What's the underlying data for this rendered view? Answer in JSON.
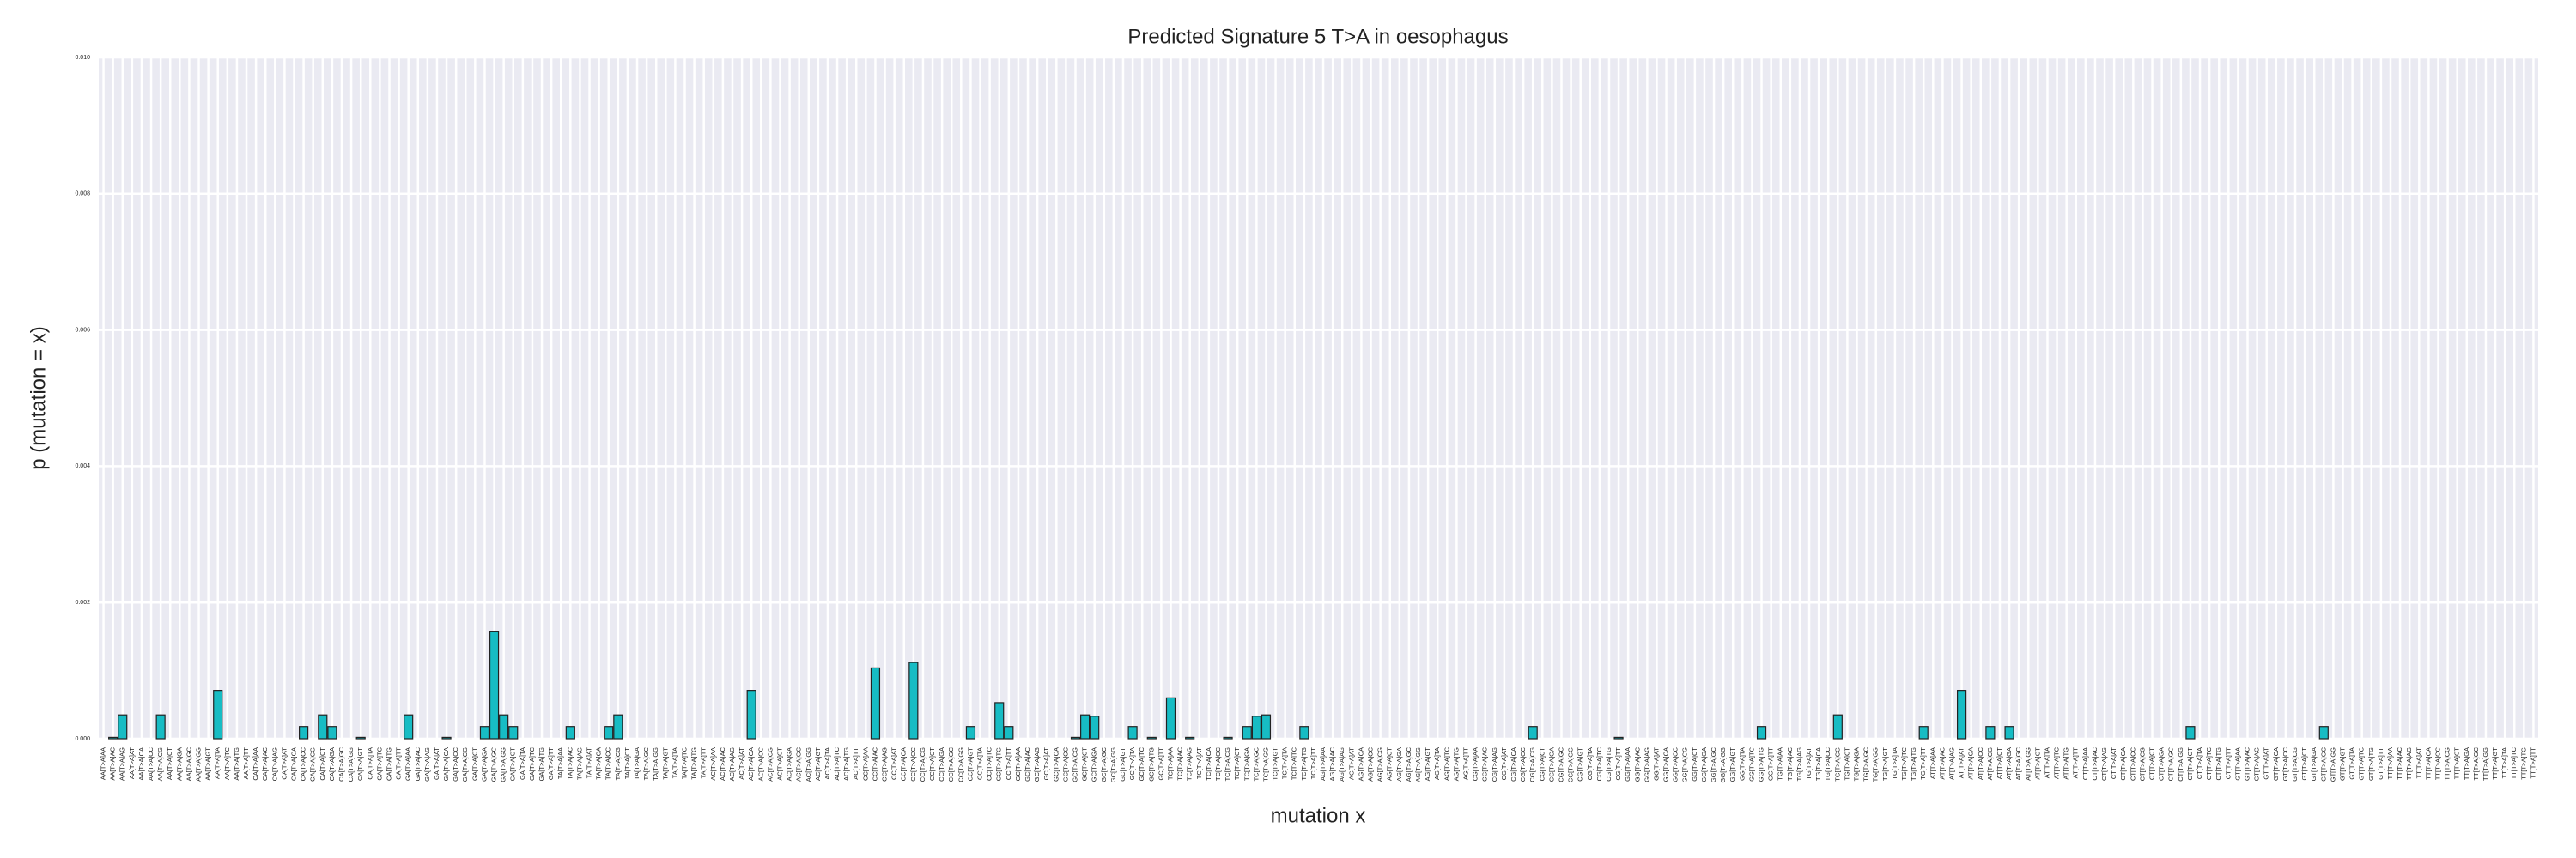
{
  "chart_data": {
    "type": "bar",
    "title": "Predicted Signature 5 T>A in oesophagus",
    "xlabel": "mutation x",
    "ylabel": "p (mutation = x)",
    "color": "#17bcc4",
    "edgecolor": "#222222",
    "grid": true,
    "ylim": [
      0,
      0.01
    ],
    "yticks": [
      {
        "value": 0,
        "label": "0.000"
      },
      0.002,
      0.004,
      0.006,
      0.008,
      {
        "value": 0.01,
        "label": "0.010"
      }
    ],
    "categories": [
      "AA[T>A]AA",
      "AA[T>A]AC",
      "AA[T>A]AG",
      "AA[T>A]AT",
      "AA[T>A]CA",
      "AA[T>A]CC",
      "AA[T>A]CG",
      "AA[T>A]CT",
      "AA[T>A]GA",
      "AA[T>A]GC",
      "AA[T>A]GG",
      "AA[T>A]GT",
      "AA[T>A]TA",
      "AA[T>A]TC",
      "AA[T>A]TG",
      "AA[T>A]TT",
      "CA[T>A]AA",
      "CA[T>A]AC",
      "CA[T>A]AG",
      "CA[T>A]AT",
      "CA[T>A]CA",
      "CA[T>A]CC",
      "CA[T>A]CG",
      "CA[T>A]CT",
      "CA[T>A]GA",
      "CA[T>A]GC",
      "CA[T>A]GG",
      "CA[T>A]GT",
      "CA[T>A]TA",
      "CA[T>A]TC",
      "CA[T>A]TG",
      "CA[T>A]TT",
      "GA[T>A]AA",
      "GA[T>A]AC",
      "GA[T>A]AG",
      "GA[T>A]AT",
      "GA[T>A]CA",
      "GA[T>A]CC",
      "GA[T>A]CG",
      "GA[T>A]CT",
      "GA[T>A]GA",
      "GA[T>A]GC",
      "GA[T>A]GG",
      "GA[T>A]GT",
      "GA[T>A]TA",
      "GA[T>A]TC",
      "GA[T>A]TG",
      "GA[T>A]TT",
      "TA[T>A]AA",
      "TA[T>A]AC",
      "TA[T>A]AG",
      "TA[T>A]AT",
      "TA[T>A]CA",
      "TA[T>A]CC",
      "TA[T>A]CG",
      "TA[T>A]CT",
      "TA[T>A]GA",
      "TA[T>A]GC",
      "TA[T>A]GG",
      "TA[T>A]GT",
      "TA[T>A]TA",
      "TA[T>A]TC",
      "TA[T>A]TG",
      "TA[T>A]TT",
      "AC[T>A]AA",
      "AC[T>A]AC",
      "AC[T>A]AG",
      "AC[T>A]AT",
      "AC[T>A]CA",
      "AC[T>A]CC",
      "AC[T>A]CG",
      "AC[T>A]CT",
      "AC[T>A]GA",
      "AC[T>A]GC",
      "AC[T>A]GG",
      "AC[T>A]GT",
      "AC[T>A]TA",
      "AC[T>A]TC",
      "AC[T>A]TG",
      "AC[T>A]TT",
      "CC[T>A]AA",
      "CC[T>A]AC",
      "CC[T>A]AG",
      "CC[T>A]AT",
      "CC[T>A]CA",
      "CC[T>A]CC",
      "CC[T>A]CG",
      "CC[T>A]CT",
      "CC[T>A]GA",
      "CC[T>A]GC",
      "CC[T>A]GG",
      "CC[T>A]GT",
      "CC[T>A]TA",
      "CC[T>A]TC",
      "CC[T>A]TG",
      "CC[T>A]TT",
      "GC[T>A]AA",
      "GC[T>A]AC",
      "GC[T>A]AG",
      "GC[T>A]AT",
      "GC[T>A]CA",
      "GC[T>A]CC",
      "GC[T>A]CG",
      "GC[T>A]CT",
      "GC[T>A]GA",
      "GC[T>A]GC",
      "GC[T>A]GG",
      "GC[T>A]GT",
      "GC[T>A]TA",
      "GC[T>A]TC",
      "GC[T>A]TG",
      "GC[T>A]TT",
      "TC[T>A]AA",
      "TC[T>A]AC",
      "TC[T>A]AG",
      "TC[T>A]AT",
      "TC[T>A]CA",
      "TC[T>A]CC",
      "TC[T>A]CG",
      "TC[T>A]CT",
      "TC[T>A]GA",
      "TC[T>A]GC",
      "TC[T>A]GG",
      "TC[T>A]GT",
      "TC[T>A]TA",
      "TC[T>A]TC",
      "TC[T>A]TG",
      "TC[T>A]TT",
      "AG[T>A]AA",
      "AG[T>A]AC",
      "AG[T>A]AG",
      "AG[T>A]AT",
      "AG[T>A]CA",
      "AG[T>A]CC",
      "AG[T>A]CG",
      "AG[T>A]CT",
      "AG[T>A]GA",
      "AG[T>A]GC",
      "AG[T>A]GG",
      "AG[T>A]GT",
      "AG[T>A]TA",
      "AG[T>A]TC",
      "AG[T>A]TG",
      "AG[T>A]TT",
      "CG[T>A]AA",
      "CG[T>A]AC",
      "CG[T>A]AG",
      "CG[T>A]AT",
      "CG[T>A]CA",
      "CG[T>A]CC",
      "CG[T>A]CG",
      "CG[T>A]CT",
      "CG[T>A]GA",
      "CG[T>A]GC",
      "CG[T>A]GG",
      "CG[T>A]GT",
      "CG[T>A]TA",
      "CG[T>A]TC",
      "CG[T>A]TG",
      "CG[T>A]TT",
      "GG[T>A]AA",
      "GG[T>A]AC",
      "GG[T>A]AG",
      "GG[T>A]AT",
      "GG[T>A]CA",
      "GG[T>A]CC",
      "GG[T>A]CG",
      "GG[T>A]CT",
      "GG[T>A]GA",
      "GG[T>A]GC",
      "GG[T>A]GG",
      "GG[T>A]GT",
      "GG[T>A]TA",
      "GG[T>A]TC",
      "GG[T>A]TG",
      "GG[T>A]TT",
      "TG[T>A]AA",
      "TG[T>A]AC",
      "TG[T>A]AG",
      "TG[T>A]AT",
      "TG[T>A]CA",
      "TG[T>A]CC",
      "TG[T>A]CG",
      "TG[T>A]CT",
      "TG[T>A]GA",
      "TG[T>A]GC",
      "TG[T>A]GG",
      "TG[T>A]GT",
      "TG[T>A]TA",
      "TG[T>A]TC",
      "TG[T>A]TG",
      "TG[T>A]TT",
      "AT[T>A]AA",
      "AT[T>A]AC",
      "AT[T>A]AG",
      "AT[T>A]AT",
      "AT[T>A]CA",
      "AT[T>A]CC",
      "AT[T>A]CG",
      "AT[T>A]CT",
      "AT[T>A]GA",
      "AT[T>A]GC",
      "AT[T>A]GG",
      "AT[T>A]GT",
      "AT[T>A]TA",
      "AT[T>A]TC",
      "AT[T>A]TG",
      "AT[T>A]TT",
      "CT[T>A]AA",
      "CT[T>A]AC",
      "CT[T>A]AG",
      "CT[T>A]AT",
      "CT[T>A]CA",
      "CT[T>A]CC",
      "CT[T>A]CG",
      "CT[T>A]CT",
      "CT[T>A]GA",
      "CT[T>A]GC",
      "CT[T>A]GG",
      "CT[T>A]GT",
      "CT[T>A]TA",
      "CT[T>A]TC",
      "CT[T>A]TG",
      "CT[T>A]TT",
      "GT[T>A]AA",
      "GT[T>A]AC",
      "GT[T>A]AG",
      "GT[T>A]AT",
      "GT[T>A]CA",
      "GT[T>A]CC",
      "GT[T>A]CG",
      "GT[T>A]CT",
      "GT[T>A]GA",
      "GT[T>A]GC",
      "GT[T>A]GG",
      "GT[T>A]GT",
      "GT[T>A]TA",
      "GT[T>A]TC",
      "GT[T>A]TG",
      "GT[T>A]TT",
      "TT[T>A]AA",
      "TT[T>A]AC",
      "TT[T>A]AG",
      "TT[T>A]AT",
      "TT[T>A]CA",
      "TT[T>A]CC",
      "TT[T>A]CG",
      "TT[T>A]CT",
      "TT[T>A]GA",
      "TT[T>A]GC",
      "TT[T>A]GG",
      "TT[T>A]GT",
      "TT[T>A]TA",
      "TT[T>A]TC",
      "TT[T>A]TG",
      "TT[T>A]TT"
    ],
    "values": [
      0,
      2e-05,
      0.00035,
      0,
      0,
      0,
      0.00035,
      0,
      0,
      0,
      0,
      0,
      0.00071,
      0,
      0,
      0,
      0,
      0,
      0,
      0,
      0,
      0.00018,
      0,
      0.00035,
      0.00018,
      0,
      0,
      2e-05,
      0,
      0,
      0,
      0,
      0.00035,
      0,
      0,
      0,
      2e-05,
      0,
      0,
      0,
      0.00018,
      0.00157,
      0.00035,
      0.00018,
      0,
      0,
      0,
      0,
      0,
      0.00018,
      0,
      0,
      0,
      0.00018,
      0.00035,
      0,
      0,
      0,
      0,
      0,
      0,
      0,
      0,
      0,
      0,
      0,
      0,
      0,
      0.00071,
      0,
      0,
      0,
      0,
      0,
      0,
      0,
      0,
      0,
      0,
      0,
      0,
      0.00104,
      0,
      0,
      0,
      0.00112,
      0,
      0,
      0,
      0,
      0,
      0.00018,
      0,
      0,
      0.00053,
      0.00018,
      0,
      0,
      0,
      0,
      0,
      0,
      2e-05,
      0.00035,
      0.00033,
      0,
      0,
      0,
      0.00018,
      0,
      2e-05,
      0,
      0.0006,
      0,
      2e-05,
      0,
      0,
      0,
      2e-05,
      0,
      0.00018,
      0.00033,
      0.00035,
      0,
      0,
      0,
      0.00018,
      0,
      0,
      0,
      0,
      0,
      0,
      0,
      0,
      0,
      0,
      0,
      0,
      0,
      0,
      0,
      0,
      0,
      0,
      0,
      0,
      0,
      0,
      0,
      0.00018,
      0,
      0,
      0,
      0,
      0,
      0,
      0,
      0,
      2e-05,
      0,
      0,
      0,
      0,
      0,
      0,
      0,
      0,
      0,
      0,
      0,
      0,
      0,
      0,
      0.00018,
      0,
      0,
      0,
      0,
      0,
      0,
      0,
      0.00035,
      0,
      0,
      0,
      0,
      0,
      0,
      0,
      0,
      0.00018,
      0,
      0,
      0,
      0.00071,
      0,
      0,
      0.00018,
      0,
      0.00018,
      0,
      0,
      0,
      0,
      0,
      0,
      0,
      0,
      0,
      0,
      0,
      0,
      0,
      0,
      0,
      0,
      0,
      0,
      0.00018,
      0,
      0,
      0,
      0,
      0,
      0,
      0,
      0,
      0,
      0,
      0,
      0,
      0,
      0.00018,
      0,
      0,
      0,
      0,
      0,
      0,
      0,
      0,
      0,
      0,
      0,
      0,
      0,
      0,
      0,
      0,
      0,
      0,
      0,
      0,
      0,
      0
    ]
  }
}
